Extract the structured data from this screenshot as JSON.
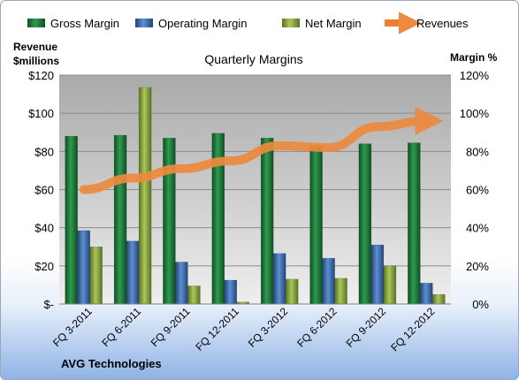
{
  "chart_data": {
    "type": "bar",
    "title": "Quarterly Margins",
    "left_axis_label": [
      "Revenue",
      "$millions"
    ],
    "right_axis_label": "Margin %",
    "footer": "AVG Technologies",
    "categories": [
      "FQ 3-2011",
      "FQ 6-2011",
      "FQ 9-2011",
      "FQ 12-2011",
      "FQ 3-2012",
      "FQ 6-2012",
      "FQ 9-2012",
      "FQ 12-2012"
    ],
    "left_ticks": [
      "$-",
      "$20",
      "$40",
      "$60",
      "$80",
      "$100",
      "$120"
    ],
    "right_ticks": [
      "0%",
      "20%",
      "40%",
      "60%",
      "80%",
      "100%",
      "120%"
    ],
    "left_ylim": [
      0,
      120
    ],
    "right_ylim": [
      0,
      120
    ],
    "grid": true,
    "legend_position": "top",
    "series": [
      {
        "name": "Gross Margin",
        "axis": "right",
        "kind": "bar",
        "color": "#1e7a3a",
        "values": [
          88,
          88.5,
          87,
          89.5,
          87,
          83,
          84,
          84.5
        ]
      },
      {
        "name": "Operating Margin",
        "axis": "right",
        "kind": "bar",
        "color": "#3d6eb3",
        "values": [
          38.5,
          33,
          22,
          12.5,
          26.5,
          24,
          31,
          11
        ]
      },
      {
        "name": "Net Margin",
        "axis": "right",
        "kind": "bar",
        "color": "#8aa83a",
        "values": [
          30,
          113.5,
          9.5,
          1,
          13,
          13.5,
          20,
          5
        ]
      },
      {
        "name": "Revenues",
        "axis": "left",
        "kind": "line",
        "color": "#ed7d31",
        "values": [
          60,
          66,
          71,
          75,
          83,
          82,
          93,
          96
        ]
      }
    ]
  }
}
